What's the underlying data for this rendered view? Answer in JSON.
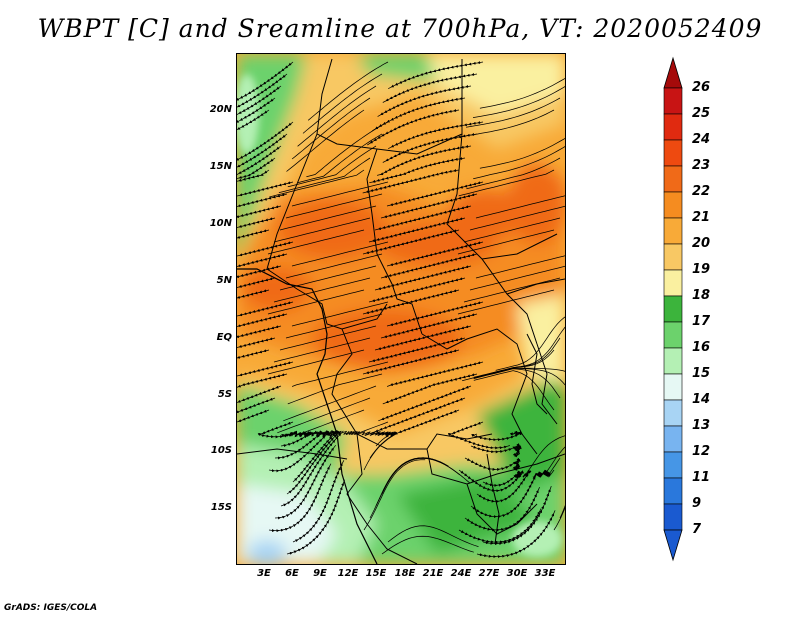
{
  "title": "WBPT [C] and Sreamline at 700hPa, VT: 2020052409",
  "lat_labels": [
    "20N",
    "15N",
    "10N",
    "5N",
    "EQ",
    "5S",
    "10S",
    "15S"
  ],
  "lon_labels": [
    "3E",
    "6E",
    "9E",
    "12E",
    "15E",
    "18E",
    "21E",
    "24E",
    "27E",
    "30E",
    "33E"
  ],
  "colorbar": {
    "labels": [
      "26",
      "25",
      "24",
      "23",
      "22",
      "21",
      "20",
      "19",
      "18",
      "17",
      "16",
      "15",
      "14",
      "13",
      "12",
      "11",
      "9",
      "7"
    ],
    "colors": [
      "#a50a0a",
      "#c81414",
      "#e02a10",
      "#ee4a10",
      "#f06a18",
      "#f58c20",
      "#f8aa38",
      "#f8c864",
      "#faf0a0",
      "#3cb43c",
      "#6cd26c",
      "#b4f0b4",
      "#e6f8f4",
      "#a8d4f4",
      "#78b4f0",
      "#4696e6",
      "#2a78dc",
      "#1a5ad0"
    ],
    "top_color": "#a50a0a",
    "bottom_color": "#1a5ad0"
  },
  "credit": "GrADS: IGES/COLA"
}
